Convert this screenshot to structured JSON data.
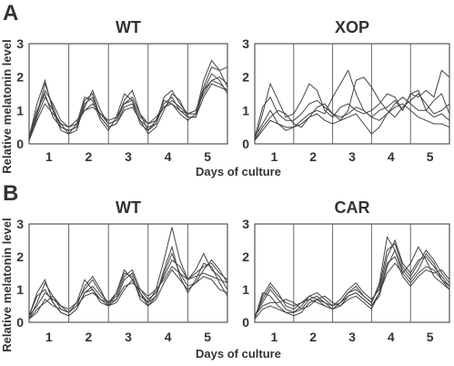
{
  "panels": [
    {
      "letter": "A",
      "ylabel": "Relative melatonin level",
      "xlabel": "Days of culture"
    },
    {
      "letter": "B",
      "ylabel": "Relative melatonin level",
      "xlabel": "Days of culture"
    }
  ],
  "chart_data": [
    {
      "panel": "A",
      "type": "line",
      "title": "WT",
      "xlim": [
        0,
        5
      ],
      "ylim": [
        0,
        3
      ],
      "yticks": [
        "0",
        "1",
        "2",
        "3"
      ],
      "categories": [
        "1",
        "2",
        "3",
        "4",
        "5"
      ],
      "day_dividers": [
        1,
        2,
        3,
        4
      ],
      "x": [
        0,
        0.2,
        0.4,
        0.6,
        0.8,
        1,
        1.2,
        1.4,
        1.6,
        1.8,
        2,
        2.2,
        2.4,
        2.6,
        2.8,
        3,
        3.2,
        3.4,
        3.6,
        3.8,
        4,
        4.2,
        4.4,
        4.6,
        4.8,
        5
      ],
      "series": [
        {
          "values": [
            0.1,
            0.9,
            1.8,
            1.1,
            0.5,
            0.4,
            0.5,
            1.3,
            1.5,
            0.8,
            0.5,
            0.6,
            1.1,
            1.2,
            0.7,
            0.5,
            0.6,
            1.2,
            1.4,
            1.0,
            0.8,
            0.8,
            1.6,
            2.1,
            1.9,
            1.5
          ]
        },
        {
          "values": [
            0.2,
            1.2,
            1.9,
            1.0,
            0.4,
            0.3,
            0.6,
            1.4,
            1.3,
            0.7,
            0.4,
            0.8,
            1.5,
            1.3,
            0.6,
            0.4,
            0.7,
            1.3,
            1.2,
            0.9,
            0.7,
            0.9,
            1.9,
            2.5,
            2.2,
            1.7
          ]
        },
        {
          "values": [
            0.1,
            0.7,
            1.2,
            0.9,
            0.6,
            0.5,
            0.7,
            1.0,
            1.1,
            0.9,
            0.6,
            0.7,
            1.2,
            1.3,
            0.8,
            0.6,
            0.8,
            1.1,
            1.3,
            1.1,
            0.9,
            1.0,
            1.5,
            1.9,
            2.0,
            1.8
          ]
        },
        {
          "values": [
            0.2,
            1.0,
            1.5,
            0.8,
            0.5,
            0.4,
            0.5,
            1.1,
            1.6,
            1.0,
            0.6,
            0.7,
            1.3,
            1.6,
            0.9,
            0.4,
            0.6,
            1.4,
            1.6,
            1.2,
            0.9,
            0.9,
            1.7,
            2.3,
            2.2,
            2.3
          ]
        },
        {
          "values": [
            0.1,
            0.8,
            1.4,
            1.0,
            0.6,
            0.3,
            0.4,
            1.2,
            1.4,
            0.8,
            0.5,
            0.6,
            1.0,
            1.1,
            0.7,
            0.3,
            0.5,
            1.0,
            1.5,
            1.3,
            0.8,
            0.8,
            1.4,
            1.8,
            1.7,
            1.6
          ]
        },
        {
          "values": [
            0.2,
            0.9,
            1.6,
            1.2,
            0.7,
            0.5,
            0.6,
            1.0,
            1.2,
            0.9,
            0.7,
            0.8,
            1.2,
            1.4,
            0.9,
            0.6,
            0.7,
            1.1,
            1.2,
            1.0,
            0.9,
            1.0,
            1.6,
            1.9,
            1.8,
            1.6
          ]
        }
      ]
    },
    {
      "panel": "A",
      "type": "line",
      "title": "XOP",
      "xlim": [
        0,
        5
      ],
      "ylim": [
        0,
        3
      ],
      "yticks": [
        "0",
        "1",
        "2",
        "3"
      ],
      "categories": [
        "1",
        "2",
        "3",
        "4",
        "5"
      ],
      "day_dividers": [
        1,
        2,
        3,
        4
      ],
      "x": [
        0,
        0.2,
        0.4,
        0.6,
        0.8,
        1,
        1.2,
        1.4,
        1.6,
        1.8,
        2,
        2.2,
        2.4,
        2.6,
        2.8,
        3,
        3.2,
        3.4,
        3.6,
        3.8,
        4,
        4.2,
        4.4,
        4.6,
        4.8,
        5
      ],
      "series": [
        {
          "values": [
            0.1,
            0.9,
            1.8,
            1.3,
            0.8,
            0.9,
            1.3,
            1.8,
            1.6,
            1.0,
            0.8,
            1.1,
            1.2,
            1.0,
            0.9,
            1.0,
            1.2,
            1.5,
            1.4,
            1.0,
            1.5,
            1.4,
            1.6,
            1.4,
            2.2,
            2.0
          ]
        },
        {
          "values": [
            0.2,
            0.6,
            1.0,
            0.6,
            0.4,
            0.5,
            0.7,
            0.9,
            1.0,
            0.9,
            1.4,
            1.8,
            2.2,
            1.5,
            1.0,
            0.8,
            0.7,
            0.9,
            1.2,
            1.4,
            1.2,
            1.0,
            1.0,
            1.3,
            1.5,
            0.9
          ]
        },
        {
          "values": [
            0.1,
            0.5,
            0.8,
            1.0,
            0.9,
            0.6,
            0.5,
            0.8,
            1.1,
            1.2,
            0.9,
            0.7,
            1.0,
            1.9,
            2.0,
            1.7,
            1.3,
            1.0,
            0.8,
            1.1,
            1.3,
            1.5,
            1.2,
            0.9,
            1.0,
            1.2
          ]
        },
        {
          "values": [
            0.2,
            1.1,
            1.4,
            0.9,
            0.7,
            0.7,
            0.9,
            1.2,
            1.3,
            1.1,
            0.9,
            0.8,
            0.9,
            1.1,
            1.0,
            0.8,
            1.0,
            1.1,
            1.3,
            1.0,
            1.5,
            1.6,
            1.0,
            0.8,
            0.9,
            0.7
          ]
        },
        {
          "values": [
            0.1,
            0.4,
            0.7,
            0.6,
            0.5,
            0.5,
            0.6,
            0.8,
            0.9,
            0.7,
            0.6,
            0.7,
            0.8,
            0.9,
            0.6,
            0.3,
            0.5,
            0.9,
            1.1,
            1.2,
            1.0,
            0.8,
            0.7,
            0.6,
            0.6,
            0.5
          ]
        }
      ]
    },
    {
      "panel": "B",
      "type": "line",
      "title": "WT",
      "xlim": [
        0,
        5
      ],
      "ylim": [
        0,
        3
      ],
      "yticks": [
        "0",
        "1",
        "2",
        "3"
      ],
      "categories": [
        "1",
        "2",
        "3",
        "4",
        "5"
      ],
      "day_dividers": [
        1,
        2,
        3,
        4
      ],
      "x": [
        0,
        0.2,
        0.4,
        0.6,
        0.8,
        1,
        1.2,
        1.4,
        1.6,
        1.8,
        2,
        2.2,
        2.4,
        2.6,
        2.8,
        3,
        3.2,
        3.4,
        3.6,
        3.8,
        4,
        4.2,
        4.4,
        4.6,
        4.8,
        5
      ],
      "series": [
        {
          "values": [
            0.1,
            0.6,
            1.2,
            0.8,
            0.4,
            0.3,
            0.6,
            1.3,
            1.0,
            0.6,
            0.5,
            0.9,
            1.6,
            1.3,
            0.8,
            0.6,
            1.0,
            1.9,
            2.9,
            1.9,
            1.3,
            1.6,
            2.1,
            1.6,
            1.4,
            1.0
          ]
        },
        {
          "values": [
            0.2,
            0.9,
            1.3,
            0.6,
            0.3,
            0.2,
            0.4,
            0.9,
            1.1,
            0.8,
            0.6,
            0.7,
            1.3,
            1.5,
            0.9,
            0.6,
            0.8,
            1.6,
            2.3,
            1.4,
            0.9,
            1.3,
            1.8,
            1.7,
            1.2,
            0.8
          ]
        },
        {
          "values": [
            0.1,
            0.3,
            0.7,
            0.5,
            0.4,
            0.3,
            0.5,
            0.8,
            0.9,
            0.7,
            0.5,
            0.7,
            1.1,
            1.2,
            1.0,
            0.8,
            1.0,
            1.3,
            1.7,
            1.5,
            1.3,
            1.4,
            1.5,
            1.4,
            1.3,
            1.2
          ]
        },
        {
          "values": [
            0.2,
            0.5,
            0.9,
            0.7,
            0.5,
            0.4,
            0.6,
            1.0,
            1.3,
            0.9,
            0.6,
            0.8,
            1.4,
            1.6,
            1.0,
            0.7,
            0.9,
            1.4,
            1.9,
            1.7,
            1.3,
            1.5,
            1.7,
            1.8,
            1.5,
            1.3
          ]
        },
        {
          "values": [
            0.1,
            0.4,
            0.6,
            0.8,
            0.5,
            0.3,
            0.5,
            1.1,
            1.4,
            1.0,
            0.5,
            0.6,
            1.0,
            1.3,
            0.9,
            0.5,
            0.7,
            1.2,
            1.6,
            1.3,
            1.0,
            1.2,
            1.6,
            1.9,
            1.6,
            1.2
          ]
        },
        {
          "values": [
            0.2,
            0.8,
            1.0,
            0.6,
            0.3,
            0.2,
            0.4,
            0.9,
            1.0,
            0.7,
            0.6,
            0.9,
            1.5,
            1.4,
            0.7,
            0.5,
            0.8,
            1.5,
            2.1,
            1.5,
            1.1,
            1.2,
            1.4,
            1.3,
            1.0,
            0.9
          ]
        }
      ]
    },
    {
      "panel": "B",
      "type": "line",
      "title": "CAR",
      "xlim": [
        0,
        5
      ],
      "ylim": [
        0,
        3
      ],
      "yticks": [
        "0",
        "1",
        "2",
        "3"
      ],
      "categories": [
        "1",
        "2",
        "3",
        "4",
        "5"
      ],
      "day_dividers": [
        1,
        2,
        3,
        4
      ],
      "x": [
        0,
        0.2,
        0.4,
        0.6,
        0.8,
        1,
        1.2,
        1.4,
        1.6,
        1.8,
        2,
        2.2,
        2.4,
        2.6,
        2.8,
        3,
        3.2,
        3.4,
        3.6,
        3.8,
        4,
        4.2,
        4.4,
        4.6,
        4.8,
        5
      ],
      "series": [
        {
          "values": [
            0.1,
            0.8,
            1.2,
            0.9,
            0.5,
            0.4,
            0.6,
            0.7,
            0.6,
            0.5,
            0.4,
            0.6,
            0.9,
            1.0,
            0.8,
            0.6,
            1.2,
            2.6,
            2.2,
            1.5,
            1.8,
            2.3,
            1.9,
            1.4,
            1.2,
            1.0
          ]
        },
        {
          "values": [
            0.2,
            0.6,
            1.0,
            0.7,
            0.4,
            0.3,
            0.5,
            0.8,
            0.9,
            0.7,
            0.5,
            0.7,
            1.0,
            1.2,
            0.9,
            0.7,
            1.0,
            2.0,
            2.5,
            1.8,
            1.5,
            1.9,
            2.0,
            1.7,
            1.4,
            1.1
          ]
        },
        {
          "values": [
            0.1,
            0.9,
            0.8,
            0.5,
            0.3,
            0.2,
            0.3,
            0.6,
            0.7,
            0.6,
            0.4,
            0.5,
            0.8,
            0.9,
            0.7,
            0.5,
            0.8,
            1.7,
            2.2,
            1.6,
            1.3,
            1.6,
            2.1,
            1.8,
            1.3,
            1.0
          ]
        },
        {
          "values": [
            0.2,
            0.5,
            0.6,
            0.6,
            0.7,
            0.6,
            0.4,
            0.5,
            0.7,
            0.8,
            0.6,
            0.5,
            0.7,
            0.8,
            0.6,
            0.4,
            0.9,
            1.8,
            2.0,
            1.4,
            1.1,
            1.4,
            1.6,
            1.5,
            1.6,
            1.3
          ]
        },
        {
          "values": [
            0.1,
            0.4,
            0.5,
            0.4,
            0.3,
            0.3,
            0.4,
            0.7,
            0.8,
            0.6,
            0.5,
            0.6,
            0.9,
            1.1,
            0.8,
            0.6,
            1.1,
            2.2,
            2.4,
            1.7,
            1.4,
            1.8,
            2.2,
            1.9,
            1.5,
            1.2
          ]
        },
        {
          "values": [
            0.2,
            0.7,
            1.1,
            0.8,
            0.6,
            0.5,
            0.6,
            0.8,
            0.7,
            0.5,
            0.4,
            0.6,
            0.8,
            0.9,
            0.7,
            0.5,
            0.9,
            1.5,
            1.8,
            1.5,
            1.2,
            1.5,
            1.7,
            1.6,
            1.3,
            1.1
          ]
        }
      ]
    }
  ]
}
